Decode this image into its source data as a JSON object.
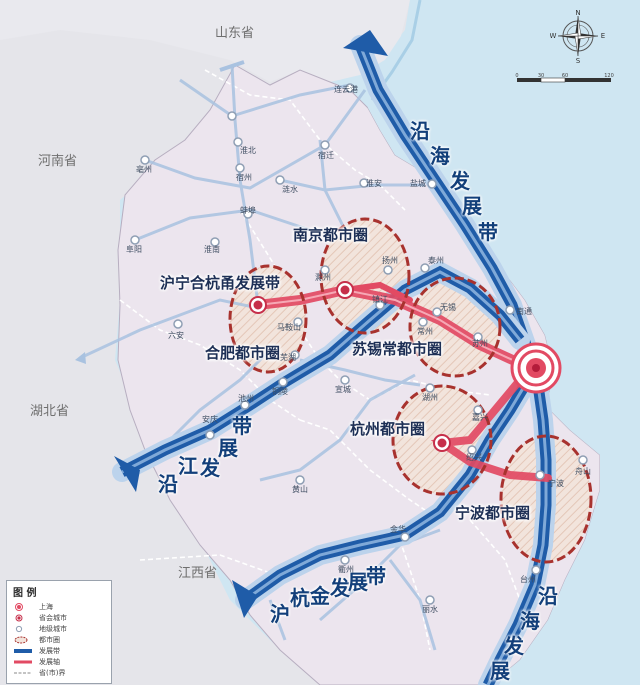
{
  "provinces": [
    "山东省",
    "河南省",
    "湖北省",
    "江西省"
  ],
  "belts": {
    "coastal_top": [
      "沿",
      "海",
      "发",
      "展",
      "带"
    ],
    "coastal_bottom": [
      "沿",
      "海",
      "发",
      "展",
      "带"
    ],
    "yangtze": [
      "沿",
      "江",
      "发",
      "展",
      "带"
    ],
    "huhangjin": [
      "沪",
      "杭",
      "金",
      "发",
      "展",
      "带"
    ],
    "huning": "沪宁合杭甬发展带"
  },
  "metros": {
    "nanjing": "南京都市圈",
    "hefei": "合肥都市圈",
    "suxichang": "苏锡常都市圈",
    "hangzhou": "杭州都市圈",
    "ningbo": "宁波都市圈"
  },
  "cities": {
    "yancheng": "盐城",
    "huaian": "淮安",
    "yangzhou": "扬州",
    "taizhou": "泰州",
    "chuzhou": "滁州",
    "zhenjiang": "镇江",
    "maanshan": "马鞍山",
    "wuhu": "芜湖",
    "changzhou": "常州",
    "wuxi": "无锡",
    "suzhou": "苏州",
    "nantong": "南通",
    "xuancheng": "宣城",
    "huzhou": "湖州",
    "jiaxing": "嘉兴",
    "shaoxing": "绍兴",
    "ningbo": "宁波",
    "zhoushan": "舟山",
    "anqing": "安庆",
    "chizhou": "池州",
    "tongling": "铜陵",
    "jinhua": "金华",
    "taizhou_zj": "台州",
    "lishui": "丽水",
    "liuan": "六安",
    "bengbu": "蚌埠",
    "huainan": "淮南",
    "fuyang": "阜阳",
    "huaibei": "淮北",
    "bozhou": "亳州",
    "suzhou_ah": "宿州",
    "lianyungang": "连云港",
    "suqian": "宿迁",
    "huangshan": "黄山",
    "quzhou": "衢州",
    "wenzhou": "温州",
    "lianshui": "涟水"
  },
  "legend": {
    "title": "图 例",
    "items": [
      "上海",
      "省会城市",
      "地级城市",
      "都市圈",
      "发展带",
      "发展轴",
      "省(市)界"
    ]
  },
  "compass": {
    "n": "N",
    "s": "S",
    "e": "E",
    "w": "W"
  },
  "scale": {
    "ticks": [
      "0",
      "30",
      "60",
      "120"
    ]
  },
  "colors": {
    "sea": "#cfe6f2",
    "land_other": "#e6e6ea",
    "delta": "#ede7ef",
    "belt": "#1f5ca8",
    "axis": "#e24a63",
    "metro_ring": "#a8322e",
    "minor_axis": "#a9c2e0"
  }
}
